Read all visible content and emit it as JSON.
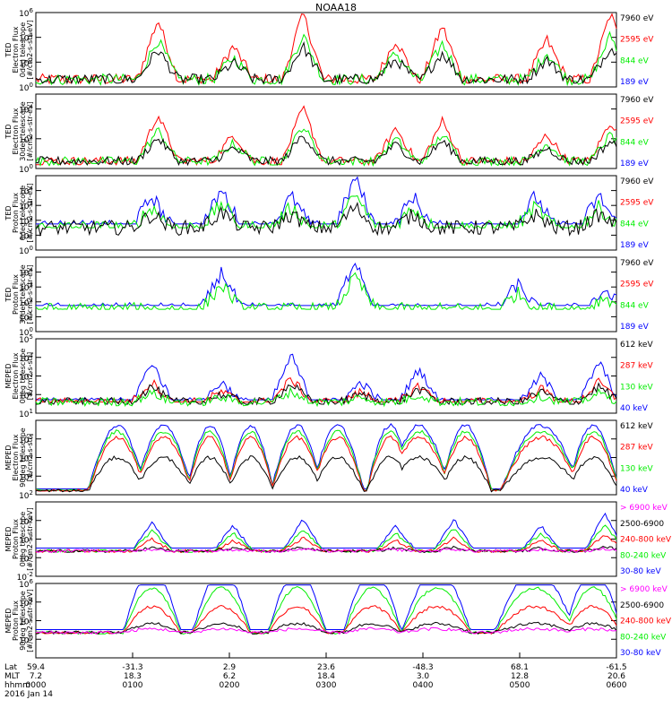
{
  "title": "NOAA18",
  "colors": {
    "blue": "#0000ff",
    "red": "#ff0000",
    "green": "#00ee00",
    "black": "#000000",
    "magenta": "#ff00ff"
  },
  "chart_data": [
    {
      "type": "line",
      "ylabel": [
        "TED",
        "Electron Flux",
        "0deg telescope",
        "[#/cm2-s-str-eV]"
      ],
      "yscale": "log",
      "ylim": [
        1,
        1000000
      ],
      "yticks": [
        {
          "label": "10",
          "sup": "6",
          "exp": 6
        },
        {
          "label": "10",
          "sup": "4",
          "exp": 4
        },
        {
          "label": "10",
          "sup": "2",
          "exp": 2
        },
        {
          "label": "10",
          "sup": "0",
          "exp": 0
        }
      ],
      "legend": [
        {
          "text": "7960 eV",
          "color": "black"
        },
        {
          "text": "2595 eV",
          "color": "red"
        },
        {
          "text": "844 eV",
          "color": "green"
        },
        {
          "text": "189 eV",
          "color": "blue"
        }
      ],
      "bursts": [
        [
          0.21,
          0.9
        ],
        [
          0.34,
          0.5
        ],
        [
          0.46,
          1
        ],
        [
          0.62,
          0.6
        ],
        [
          0.7,
          0.8
        ],
        [
          0.88,
          0.6
        ],
        [
          0.99,
          1
        ]
      ],
      "base": 0.1,
      "noise": 0.15,
      "series": [
        {
          "name": "2595 eV",
          "color": "red",
          "level": 0.9,
          "floor": 0.05
        },
        {
          "name": "844 eV",
          "color": "green",
          "level": 0.6,
          "floor": 0.03
        },
        {
          "name": "7960 eV",
          "color": "black",
          "level": 0.45,
          "floor": 0.05
        }
      ]
    },
    {
      "type": "line",
      "ylabel": [
        "TED",
        "Electron Flux",
        "30deg telescope",
        "[#/cm2-s-str-eV]"
      ],
      "yscale": "log",
      "ylim": [
        1,
        100000
      ],
      "yticks": [
        {
          "label": "10",
          "sup": "4",
          "exp": 4
        },
        {
          "label": "10",
          "sup": "2",
          "exp": 2
        },
        {
          "label": "10",
          "sup": "0",
          "exp": 0
        }
      ],
      "legend": [
        {
          "text": "7960 eV",
          "color": "black"
        },
        {
          "text": "2595 eV",
          "color": "red"
        },
        {
          "text": "844 eV",
          "color": "green"
        },
        {
          "text": "189 eV",
          "color": "blue"
        }
      ],
      "bursts": [
        [
          0.21,
          0.7
        ],
        [
          0.34,
          0.4
        ],
        [
          0.46,
          0.8
        ],
        [
          0.62,
          0.5
        ],
        [
          0.7,
          0.6
        ],
        [
          0.88,
          0.4
        ],
        [
          0.99,
          0.6
        ]
      ],
      "base": 0.1,
      "noise": 0.12,
      "series": [
        {
          "name": "2595 eV",
          "color": "red",
          "level": 0.9,
          "floor": 0.05
        },
        {
          "name": "844 eV",
          "color": "green",
          "level": 0.6,
          "floor": 0.03
        },
        {
          "name": "7960 eV",
          "color": "black",
          "level": 0.45,
          "floor": 0.05
        }
      ]
    },
    {
      "type": "line",
      "ylabel": [
        "TED",
        "Proton Flux",
        "0deg telescope",
        "[#/cm2-s-str-eV]"
      ],
      "yscale": "log",
      "ylim": [
        1,
        100000
      ],
      "yticks": [
        {
          "label": "10",
          "sup": "4",
          "exp": 4
        },
        {
          "label": "10",
          "sup": "3",
          "exp": 3
        },
        {
          "label": "10",
          "sup": "2",
          "exp": 2
        },
        {
          "label": "10",
          "sup": "1",
          "exp": 1
        },
        {
          "label": "10",
          "sup": "0",
          "exp": 0
        }
      ],
      "legend": [
        {
          "text": "7960 eV",
          "color": "black"
        },
        {
          "text": "2595 eV",
          "color": "red"
        },
        {
          "text": "844 eV",
          "color": "green"
        },
        {
          "text": "189 eV",
          "color": "blue"
        }
      ],
      "bursts": [
        [
          0.2,
          0.5
        ],
        [
          0.32,
          0.6
        ],
        [
          0.44,
          0.5
        ],
        [
          0.55,
          0.8
        ],
        [
          0.65,
          0.5
        ],
        [
          0.86,
          0.5
        ],
        [
          0.97,
          0.5
        ]
      ],
      "base": 0.3,
      "noise": 0.2,
      "series": [
        {
          "name": "189 eV",
          "color": "blue",
          "level": 0.85,
          "floor": 0.35
        },
        {
          "name": "844 eV",
          "color": "green",
          "level": 0.55,
          "floor": 0.3
        },
        {
          "name": "7960 eV",
          "color": "black",
          "level": 0.35,
          "floor": 0.05
        }
      ]
    },
    {
      "type": "line",
      "ylabel": [
        "TED",
        "Proton Flux",
        "30deg telescope",
        "[#/cm2-s-str-eV]"
      ],
      "yscale": "log",
      "ylim": [
        1,
        100000
      ],
      "yticks": [
        {
          "label": "10",
          "sup": "4",
          "exp": 4
        },
        {
          "label": "10",
          "sup": "3",
          "exp": 3
        },
        {
          "label": "10",
          "sup": "2",
          "exp": 2
        },
        {
          "label": "10",
          "sup": "1",
          "exp": 1
        },
        {
          "label": "10",
          "sup": "0",
          "exp": 0
        }
      ],
      "legend": [
        {
          "text": "7960 eV",
          "color": "black"
        },
        {
          "text": "2595 eV",
          "color": "red"
        },
        {
          "text": "844 eV",
          "color": "green"
        },
        {
          "text": "189 eV",
          "color": "blue"
        }
      ],
      "bursts": [
        [
          0.32,
          0.6
        ],
        [
          0.55,
          0.8
        ],
        [
          0.83,
          0.4
        ],
        [
          0.98,
          0.3
        ]
      ],
      "base": 0.3,
      "noise": 0.18,
      "series": [
        {
          "name": "189 eV",
          "color": "blue",
          "level": 0.85,
          "floor": 0.35
        },
        {
          "name": "844 eV",
          "color": "green",
          "level": 0.55,
          "floor": 0.3
        }
      ]
    },
    {
      "type": "line",
      "ylabel": [
        "MEPED",
        "Electron Flux",
        "0deg telescope",
        "[#/cm2-s-str]"
      ],
      "yscale": "log",
      "ylim": [
        10,
        100000
      ],
      "yticks": [
        {
          "label": "10",
          "sup": "5",
          "exp": 5
        },
        {
          "label": "10",
          "sup": "4",
          "exp": 4
        },
        {
          "label": "10",
          "sup": "3",
          "exp": 3
        },
        {
          "label": "10",
          "sup": "2",
          "exp": 2
        },
        {
          "label": "10",
          "sup": "1",
          "exp": 1
        }
      ],
      "legend": [
        {
          "text": "612 keV",
          "color": "black"
        },
        {
          "text": "287 keV",
          "color": "red"
        },
        {
          "text": "130 keV",
          "color": "green"
        },
        {
          "text": "40 keV",
          "color": "blue"
        }
      ],
      "bursts": [
        [
          0.2,
          0.6
        ],
        [
          0.32,
          0.3
        ],
        [
          0.44,
          0.7
        ],
        [
          0.56,
          0.3
        ],
        [
          0.66,
          0.5
        ],
        [
          0.87,
          0.4
        ],
        [
          0.97,
          0.6
        ]
      ],
      "base": 0.15,
      "noise": 0.12,
      "series": [
        {
          "name": "40 keV",
          "color": "blue",
          "level": 0.9,
          "floor": 0.18
        },
        {
          "name": "287 keV",
          "color": "red",
          "level": 0.45,
          "floor": 0.15
        },
        {
          "name": "612 keV",
          "color": "black",
          "level": 0.35,
          "floor": 0.12
        },
        {
          "name": "130 keV",
          "color": "green",
          "level": 0.2,
          "floor": 0.1
        }
      ]
    },
    {
      "type": "line",
      "ylabel": [
        "MEPED",
        "Electron Flux",
        "90deg telescope",
        "[#/cm2-s-str]"
      ],
      "yscale": "log",
      "ylim": [
        100,
        1000000
      ],
      "yticks": [
        {
          "label": "10",
          "sup": "5",
          "exp": 5
        },
        {
          "label": "10",
          "sup": "4",
          "exp": 4
        },
        {
          "label": "10",
          "sup": "3",
          "exp": 3
        },
        {
          "label": "10",
          "sup": "2",
          "exp": 2
        }
      ],
      "legend": [
        {
          "text": "612 keV",
          "color": "black"
        },
        {
          "text": "287 keV",
          "color": "red"
        },
        {
          "text": "130 keV",
          "color": "green"
        },
        {
          "text": "40 keV",
          "color": "blue"
        }
      ],
      "humps": [
        [
          0.14,
          0.05
        ],
        [
          0.22,
          0.05
        ],
        [
          0.3,
          0.04
        ],
        [
          0.37,
          0.04
        ],
        [
          0.45,
          0.045
        ],
        [
          0.52,
          0.045
        ],
        [
          0.61,
          0.04
        ],
        [
          0.66,
          0.055
        ],
        [
          0.74,
          0.045
        ],
        [
          0.87,
          0.07
        ],
        [
          0.96,
          0.045
        ]
      ],
      "base": 0.05,
      "noise": 0.05,
      "series": [
        {
          "name": "40 keV",
          "color": "blue",
          "level": 0.88,
          "floor": 0.08
        },
        {
          "name": "130 keV",
          "color": "green",
          "level": 0.8,
          "floor": 0.06
        },
        {
          "name": "287 keV",
          "color": "red",
          "level": 0.72,
          "floor": 0.05
        },
        {
          "name": "612 keV",
          "color": "black",
          "level": 0.45,
          "floor": 0.04
        }
      ]
    },
    {
      "type": "line",
      "ylabel": [
        "MEPED",
        "Proton Flux",
        "0deg telescope",
        "[#/cm2-s-str-keV]"
      ],
      "yscale": "log",
      "ylim": [
        0.01,
        1000000
      ],
      "yticks": [
        {
          "label": "10",
          "sup": "4",
          "exp": 4
        },
        {
          "label": "10",
          "sup": "2",
          "exp": 2
        },
        {
          "label": "10",
          "sup": "0",
          "exp": 0
        },
        {
          "label": "10",
          "sup": "-2",
          "exp": -2
        }
      ],
      "legend": [
        {
          "text": "> 6900 keV",
          "color": "magenta"
        },
        {
          "text": "2500-6900",
          "color": "black"
        },
        {
          "text": "240-800 keV",
          "color": "red"
        },
        {
          "text": "80-240 keV",
          "color": "green"
        },
        {
          "text": "30-80 keV",
          "color": "blue"
        }
      ],
      "bursts": [
        [
          0.2,
          0.45
        ],
        [
          0.34,
          0.4
        ],
        [
          0.46,
          0.5
        ],
        [
          0.62,
          0.4
        ],
        [
          0.72,
          0.5
        ],
        [
          0.87,
          0.4
        ],
        [
          0.98,
          0.6
        ]
      ],
      "base": 0.34,
      "noise": 0.04,
      "series": [
        {
          "name": "30-80 keV",
          "color": "blue",
          "level": 0.85,
          "floor": 0.38
        },
        {
          "name": "80-240 keV",
          "color": "green",
          "level": 0.6,
          "floor": 0.32
        },
        {
          "name": "240-800 keV",
          "color": "red",
          "level": 0.35,
          "floor": 0.25
        },
        {
          "name": "2500-6900",
          "color": "black",
          "level": 0.1,
          "floor": 0.05
        },
        {
          "name": "> 6900 keV",
          "color": "magenta",
          "level": 0.05,
          "floor": 0.03
        }
      ]
    },
    {
      "type": "line",
      "ylabel": [
        "MEPED",
        "Proton Flux",
        "90deg telescope",
        "[#/cm2-s-str-keV]"
      ],
      "yscale": "log",
      "ylim": [
        0.01,
        1000000
      ],
      "yticks": [
        {
          "label": "10",
          "sup": "6",
          "exp": 6
        },
        {
          "label": "10",
          "sup": "4",
          "exp": 4
        },
        {
          "label": "10",
          "sup": "2",
          "exp": 2
        },
        {
          "label": "10",
          "sup": "0",
          "exp": 0
        }
      ],
      "legend": [
        {
          "text": "> 6900 keV",
          "color": "magenta"
        },
        {
          "text": "2500-6900",
          "color": "black"
        },
        {
          "text": "240-800 keV",
          "color": "red"
        },
        {
          "text": "80-240 keV",
          "color": "green"
        },
        {
          "text": "30-80 keV",
          "color": "blue"
        }
      ],
      "humps": [
        [
          0.2,
          0.05
        ],
        [
          0.32,
          0.05
        ],
        [
          0.45,
          0.05
        ],
        [
          0.58,
          0.05
        ],
        [
          0.69,
          0.06
        ],
        [
          0.86,
          0.07
        ],
        [
          0.96,
          0.05
        ]
      ],
      "base": 0.34,
      "noise": 0.04,
      "series": [
        {
          "name": "30-80 keV",
          "color": "blue",
          "level": 0.85,
          "floor": 0.38
        },
        {
          "name": "80-240 keV",
          "color": "green",
          "level": 0.6,
          "floor": 0.32
        },
        {
          "name": "240-800 keV",
          "color": "red",
          "level": 0.35,
          "floor": 0.25
        },
        {
          "name": "2500-6900",
          "color": "black",
          "level": 0.12,
          "floor": 0.05
        },
        {
          "name": "> 6900 keV",
          "color": "magenta",
          "level": 0.05,
          "floor": 0.03
        }
      ]
    }
  ],
  "xaxis": {
    "row_labels": [
      "Lat",
      "MLT",
      "hhmm",
      "2016 Jan 14"
    ],
    "columns": [
      {
        "lat": "59.4",
        "mlt": "7.2",
        "hhmm": "0000"
      },
      {
        "lat": "-31.3",
        "mlt": "18.3",
        "hhmm": "0100"
      },
      {
        "lat": "2.9",
        "mlt": "6.2",
        "hhmm": "0200"
      },
      {
        "lat": "23.6",
        "mlt": "18.4",
        "hhmm": "0300"
      },
      {
        "lat": "-48.3",
        "mlt": "3.0",
        "hhmm": "0400"
      },
      {
        "lat": "68.1",
        "mlt": "12.8",
        "hhmm": "0500"
      },
      {
        "lat": "-61.5",
        "mlt": "20.6",
        "hhmm": "0600"
      }
    ]
  }
}
